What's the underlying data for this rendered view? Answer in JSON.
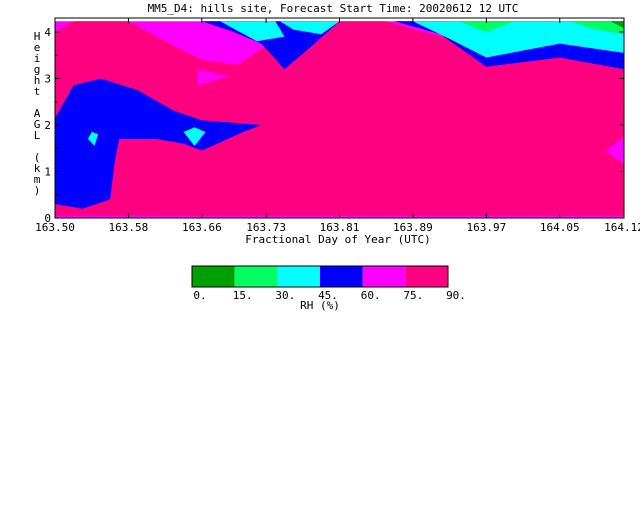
{
  "chart_data": {
    "type": "heatmap",
    "title": "MM5_D4: hills site,  Forecast Start Time: 20020612 12 UTC",
    "xlabel": "Fractional Day of Year (UTC)",
    "ylabel": "Height AGL (km)",
    "x_ticks": [
      "163.50",
      "163.58",
      "163.66",
      "163.73",
      "163.81",
      "163.89",
      "163.97",
      "164.05",
      "164.12"
    ],
    "y_ticks": [
      "0",
      "1",
      "2",
      "3",
      "4"
    ],
    "xlim": [
      163.5,
      164.12
    ],
    "ylim": [
      0,
      4.3
    ],
    "colorbar": {
      "label": "RH (%)",
      "ticks": [
        "0.",
        "15.",
        "30.",
        "45.",
        "60.",
        "75.",
        "90."
      ],
      "bins": [
        {
          "from": 0,
          "to": 15,
          "color": "#00a000"
        },
        {
          "from": 15,
          "to": 30,
          "color": "#00ff60"
        },
        {
          "from": 30,
          "to": 45,
          "color": "#00ffff"
        },
        {
          "from": 45,
          "to": 60,
          "color": "#0000ff"
        },
        {
          "from": 60,
          "to": 75,
          "color": "#ff00ff"
        },
        {
          "from": 75,
          "to": 90,
          "color": "#ff0080"
        }
      ]
    },
    "regions": [
      {
        "level": "60-75",
        "color": "#ff00ff",
        "points": [
          [
            163.5,
            0
          ],
          [
            164.12,
            0
          ],
          [
            164.12,
            4.23
          ],
          [
            163.5,
            4.23
          ]
        ]
      },
      {
        "level": "75-90",
        "color": "#ff0080",
        "points": [
          [
            163.55,
            0.05
          ],
          [
            164.12,
            0.05
          ],
          [
            164.12,
            3.75
          ],
          [
            164.05,
            3.85
          ],
          [
            163.97,
            3.65
          ],
          [
            163.93,
            3.85
          ],
          [
            163.86,
            4.23
          ],
          [
            163.81,
            4.23
          ],
          [
            163.77,
            3.95
          ],
          [
            163.73,
            3.7
          ],
          [
            163.7,
            3.3
          ],
          [
            163.66,
            3.4
          ],
          [
            163.62,
            3.8
          ],
          [
            163.58,
            4.23
          ],
          [
            163.52,
            4.23
          ],
          [
            163.5,
            4.0
          ],
          [
            163.5,
            0.05
          ]
        ]
      },
      {
        "level": "75-90",
        "color": "#ff0080",
        "points": [
          [
            163.61,
            2.3
          ],
          [
            163.655,
            2.2
          ],
          [
            163.73,
            1.95
          ],
          [
            163.72,
            1.85
          ],
          [
            163.69,
            1.6
          ],
          [
            163.67,
            1.3
          ],
          [
            163.64,
            1.6
          ],
          [
            163.61,
            1.9
          ]
        ]
      },
      {
        "level": "60-75",
        "color": "#ff00ff",
        "points": [
          [
            163.655,
            3.2
          ],
          [
            163.69,
            3.05
          ],
          [
            163.655,
            2.85
          ]
        ]
      },
      {
        "level": "60-75",
        "color": "#ff00ff",
        "points": [
          [
            164.12,
            1.75
          ],
          [
            164.1,
            1.45
          ],
          [
            164.12,
            1.15
          ]
        ]
      },
      {
        "level": "45-60",
        "color": "#0000ff",
        "points": [
          [
            163.5,
            2.15
          ],
          [
            163.52,
            2.85
          ],
          [
            163.55,
            3.0
          ],
          [
            163.59,
            2.75
          ],
          [
            163.63,
            2.3
          ],
          [
            163.66,
            2.1
          ],
          [
            163.725,
            2.0
          ],
          [
            163.705,
            1.85
          ],
          [
            163.66,
            1.45
          ],
          [
            163.64,
            1.6
          ],
          [
            163.61,
            1.7
          ],
          [
            163.57,
            1.7
          ],
          [
            163.565,
            1.2
          ],
          [
            163.56,
            0.4
          ],
          [
            163.53,
            0.2
          ],
          [
            163.5,
            0.3
          ]
        ]
      },
      {
        "level": "45-60",
        "color": "#0000ff",
        "points": [
          [
            163.58,
            4.23
          ],
          [
            163.66,
            4.23
          ],
          [
            163.695,
            4.0
          ],
          [
            163.725,
            3.75
          ],
          [
            163.75,
            3.2
          ],
          [
            163.78,
            3.7
          ],
          [
            163.81,
            4.23
          ]
        ]
      },
      {
        "level": "45-60",
        "color": "#0000ff",
        "points": [
          [
            163.87,
            4.23
          ],
          [
            163.92,
            3.95
          ],
          [
            163.97,
            3.25
          ],
          [
            164.05,
            3.45
          ],
          [
            164.12,
            3.2
          ],
          [
            164.12,
            4.23
          ]
        ]
      },
      {
        "level": "30-45",
        "color": "#00ffff",
        "points": [
          [
            163.68,
            4.23
          ],
          [
            163.74,
            4.23
          ],
          [
            163.75,
            3.9
          ],
          [
            163.72,
            3.8
          ]
        ]
      },
      {
        "level": "30-45",
        "color": "#00ffff",
        "points": [
          [
            163.745,
            4.23
          ],
          [
            163.81,
            4.23
          ],
          [
            163.79,
            3.95
          ],
          [
            163.76,
            4.05
          ]
        ]
      },
      {
        "level": "30-45",
        "color": "#00ffff",
        "points": [
          [
            163.89,
            4.23
          ],
          [
            164.12,
            4.23
          ],
          [
            164.12,
            3.55
          ],
          [
            164.05,
            3.75
          ],
          [
            163.97,
            3.45
          ],
          [
            163.93,
            3.85
          ]
        ]
      },
      {
        "level": "30-45",
        "color": "#00ffff",
        "points": [
          [
            163.536,
            1.7
          ],
          [
            163.54,
            1.85
          ],
          [
            163.547,
            1.8
          ],
          [
            163.543,
            1.55
          ]
        ]
      },
      {
        "level": "30-45",
        "color": "#00ffff",
        "points": [
          [
            163.64,
            1.85
          ],
          [
            163.652,
            1.55
          ],
          [
            163.664,
            1.85
          ],
          [
            163.652,
            1.95
          ]
        ]
      },
      {
        "level": "15-30",
        "color": "#00ff60",
        "points": [
          [
            163.94,
            4.23
          ],
          [
            164.0,
            4.23
          ],
          [
            163.97,
            4.0
          ]
        ]
      },
      {
        "level": "15-30",
        "color": "#00ff60",
        "points": [
          [
            164.06,
            4.23
          ],
          [
            164.12,
            4.23
          ],
          [
            164.12,
            3.95
          ],
          [
            164.09,
            4.05
          ]
        ]
      },
      {
        "level": "0-15",
        "color": "#00a000",
        "points": [
          [
            164.105,
            4.23
          ],
          [
            164.12,
            4.23
          ],
          [
            164.12,
            4.08
          ]
        ]
      }
    ]
  }
}
